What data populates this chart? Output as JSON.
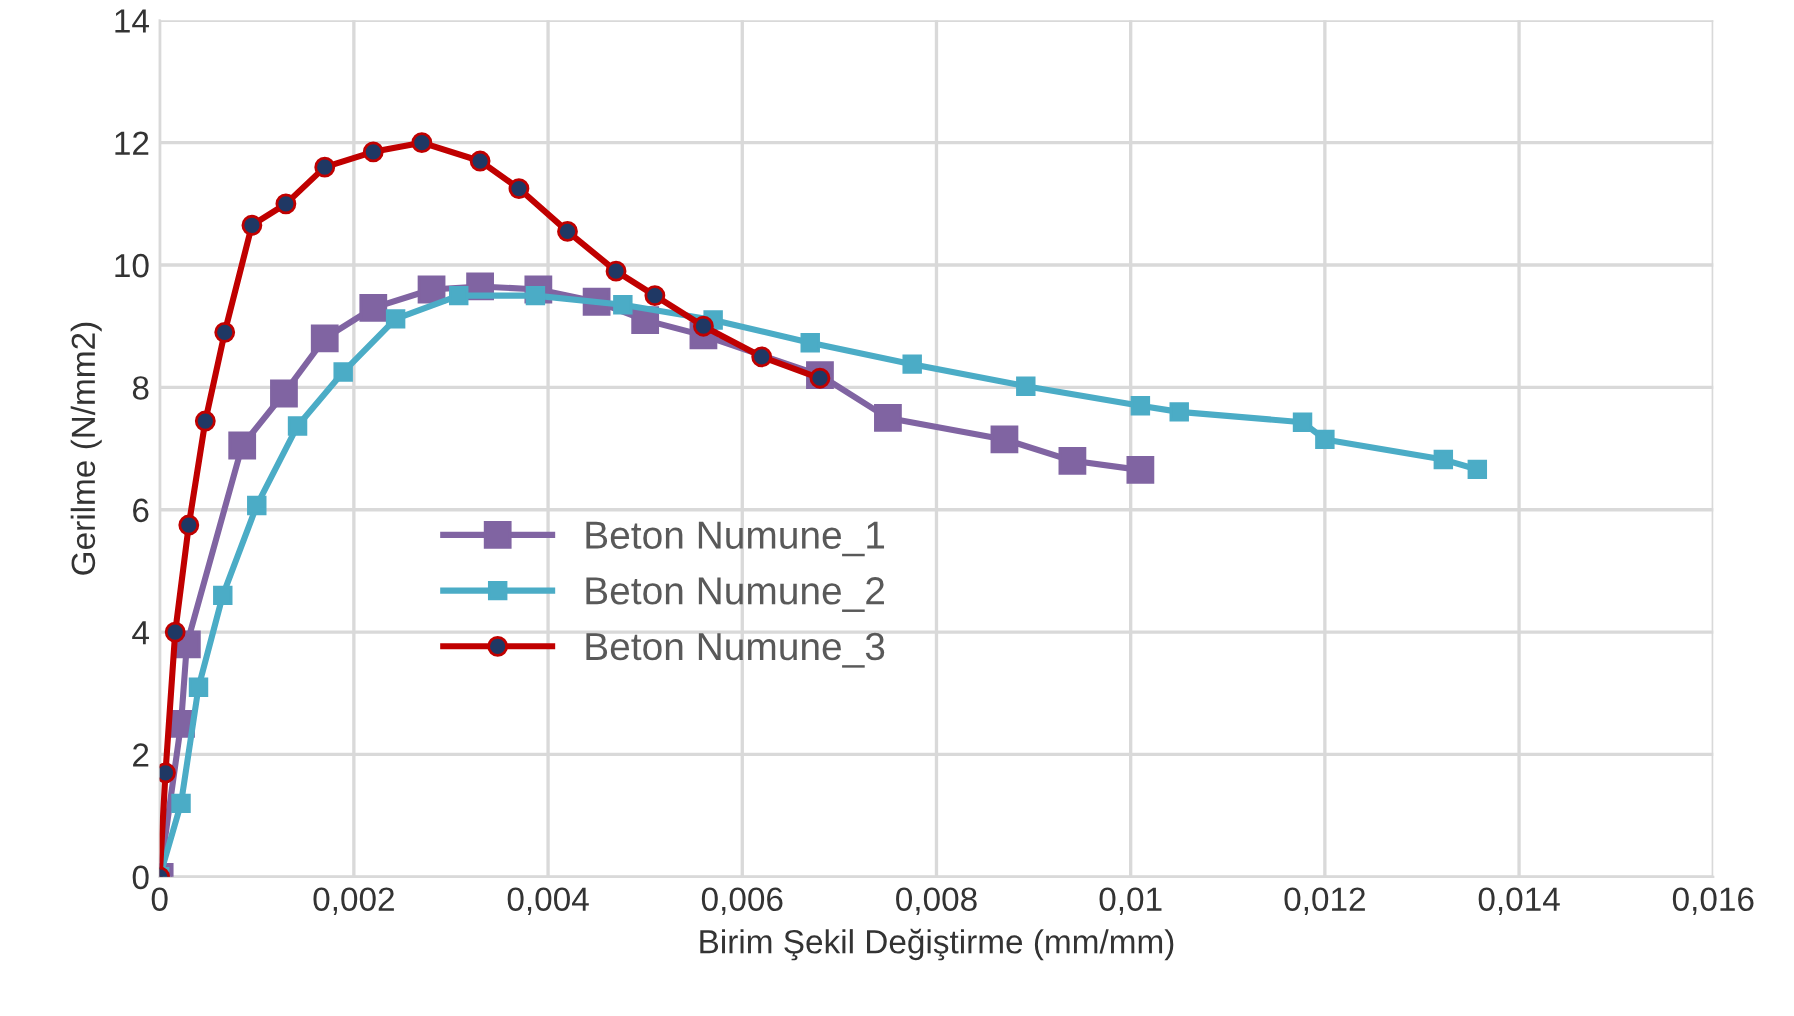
{
  "chart_data": {
    "type": "line",
    "xlabel": "Birim Şekil Değiştirme (mm/mm)",
    "ylabel": "Gerilme (N/mm2)",
    "xlim": [
      0,
      0.016
    ],
    "ylim": [
      0,
      14
    ],
    "xticks": [
      0,
      {
        "value": 0.002,
        "label": "0,002"
      },
      {
        "value": 0.004,
        "label": "0,004"
      },
      {
        "value": 0.006,
        "label": "0,006"
      },
      {
        "value": 0.008,
        "label": "0,008"
      },
      {
        "value": 0.01,
        "label": "0,01"
      },
      {
        "value": 0.012,
        "label": "0,012"
      },
      {
        "value": 0.014,
        "label": "0,014"
      },
      {
        "value": 0.016,
        "label": "0,016"
      }
    ],
    "yticks": [
      0,
      2,
      4,
      6,
      8,
      10,
      12,
      14
    ],
    "grid": true,
    "legend": "left",
    "line_style": "solid",
    "series": [
      {
        "name": "Beton Numune_1",
        "color": "#8064a2",
        "marker": "square",
        "x": [
          0,
          0.00022,
          0.00028,
          0.00085,
          0.00128,
          0.0017,
          0.0022,
          0.0028,
          0.0033,
          0.0039,
          0.0045,
          0.005,
          0.0056,
          0.0068,
          0.0075,
          0.0087,
          0.0094,
          0.0101
        ],
        "values": [
          0,
          2.5,
          3.8,
          7.05,
          7.9,
          8.8,
          9.3,
          9.6,
          9.65,
          9.6,
          9.4,
          9.1,
          8.85,
          8.2,
          7.5,
          7.15,
          6.8,
          6.65
        ]
      },
      {
        "name": "Beton Numune_2",
        "color": "#4bacc6",
        "marker": "square",
        "x": [
          0,
          0.00022,
          0.0004,
          0.00065,
          0.001,
          0.00142,
          0.00189,
          0.00243,
          0.00308,
          0.00387,
          0.00477,
          0.0057,
          0.0067,
          0.00775,
          0.00892,
          0.0101,
          0.0105,
          0.01177,
          0.012,
          0.01322,
          0.01357
        ],
        "values": [
          0,
          1.2,
          3.1,
          4.6,
          6.07,
          7.37,
          8.25,
          9.12,
          9.5,
          9.5,
          9.35,
          9.1,
          8.73,
          8.38,
          8.02,
          7.7,
          7.6,
          7.43,
          7.15,
          6.82,
          6.66
        ]
      },
      {
        "name": "Beton Numune_3",
        "color": "#c00000",
        "marker": "circle",
        "x": [
          0,
          6e-05,
          0.00016,
          0.0003,
          0.00047,
          0.00067,
          0.00095,
          0.0013,
          0.0017,
          0.0022,
          0.0027,
          0.0033,
          0.0037,
          0.0042,
          0.0047,
          0.0051,
          0.0056,
          0.0062,
          0.0068
        ],
        "values": [
          0,
          1.7,
          4.0,
          5.75,
          7.45,
          8.9,
          10.65,
          11.0,
          11.6,
          11.85,
          12.0,
          11.7,
          11.25,
          10.55,
          9.9,
          9.5,
          9.0,
          8.5,
          8.15
        ]
      }
    ]
  }
}
